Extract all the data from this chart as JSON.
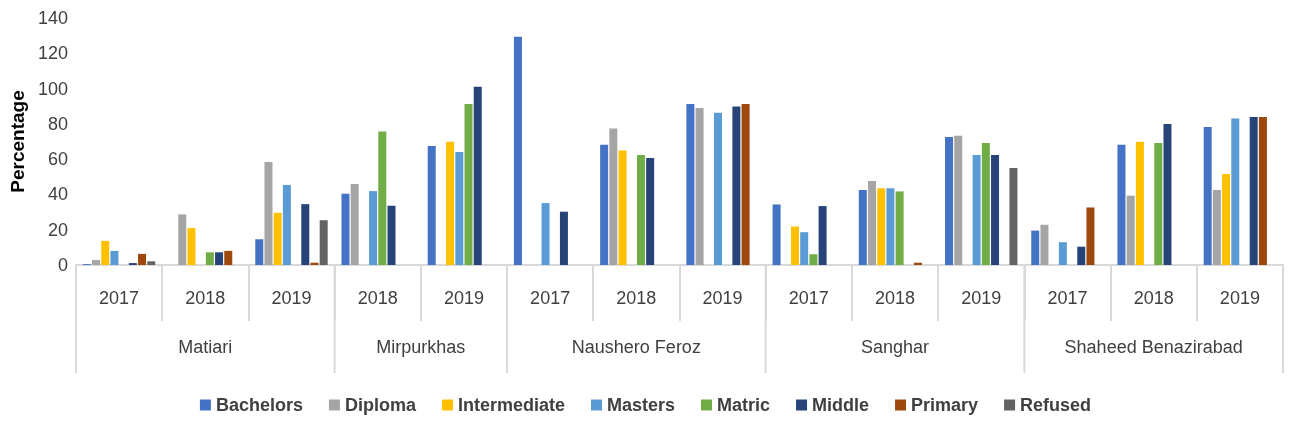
{
  "chart_data": {
    "type": "bar",
    "ylabel": "Percentage",
    "categories": [
      "2017",
      "2018",
      "2019",
      "2018",
      "2019",
      "2017",
      "2018",
      "2019",
      "2017",
      "2018",
      "2019",
      "2017",
      "2018",
      "2019"
    ],
    "annotations": [
      "Matiari",
      "Mirpurkhas",
      "Naushero Feroz",
      "Sanghar",
      "Shaheed Benazirabad"
    ],
    "series": [
      {
        "name": "Bachelors",
        "color": "#4472c4",
        "values": [
          0.5,
          null,
          14.6,
          40.4,
          67.4,
          129.4,
          68.1,
          91.3,
          34.3,
          42.5,
          72.5,
          19.5,
          68.1,
          78.2
        ]
      },
      {
        "name": "Diploma",
        "color": "#a5a5a5",
        "values": [
          2.8,
          28.7,
          58.4,
          45.9,
          null,
          null,
          77.4,
          89,
          null,
          47.6,
          73.2,
          22.8,
          39.3,
          42.5
        ]
      },
      {
        "name": "Intermediate",
        "color": "#ffc000",
        "values": [
          13.7,
          20.9,
          29.6,
          null,
          69.8,
          null,
          64.9,
          null,
          21.8,
          43.5,
          null,
          null,
          69.8,
          51.6
        ]
      },
      {
        "name": "Masters",
        "color": "#5b9bd5",
        "values": [
          8,
          null,
          45.4,
          41.9,
          64.1,
          35.1,
          null,
          86.3,
          18.6,
          43.5,
          62.4,
          12.9,
          null,
          83.1
        ]
      },
      {
        "name": "Matric",
        "color": "#70ad47",
        "values": [
          null,
          7.2,
          null,
          75.7,
          91.3,
          null,
          62.4,
          null,
          6.1,
          41.7,
          69.1,
          null,
          69.1,
          null
        ]
      },
      {
        "name": "Middle",
        "color": "#264478",
        "values": [
          1.1,
          7.2,
          34.5,
          33.6,
          101.1,
          30.2,
          60.7,
          89.8,
          33.4,
          null,
          62.4,
          10.4,
          79.9,
          83.9
        ]
      },
      {
        "name": "Primary",
        "color": "#9e480e",
        "values": [
          6.3,
          8,
          1.3,
          null,
          null,
          null,
          null,
          91.3,
          null,
          1.3,
          null,
          32.6,
          null,
          83.9
        ]
      },
      {
        "name": "Refused",
        "color": "#636363",
        "values": [
          2.1,
          null,
          25.4,
          null,
          null,
          null,
          null,
          null,
          null,
          null,
          55,
          null,
          null,
          null
        ]
      }
    ],
    "ylim": [
      0,
      140
    ],
    "yticks": [
      0,
      20,
      40,
      60,
      80,
      100,
      120,
      140
    ],
    "grid": false,
    "legend": "bottom"
  }
}
